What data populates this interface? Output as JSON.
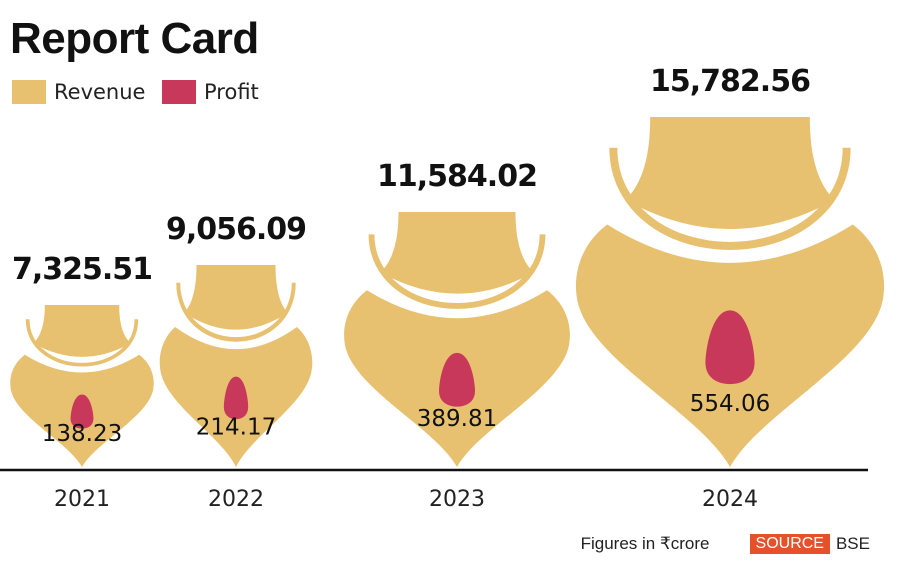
{
  "title": "Report Card",
  "legend": [
    {
      "label": "Revenue",
      "color": "#e8c170"
    },
    {
      "label": "Profit",
      "color": "#c8385a"
    }
  ],
  "chart_data": {
    "type": "bar",
    "title": "Report Card",
    "categories": [
      "2021",
      "2022",
      "2023",
      "2024"
    ],
    "series": [
      {
        "name": "Revenue",
        "values": [
          7325.51,
          9056.09,
          11584.02,
          15782.56
        ],
        "labels": [
          "7,325.51",
          "9,056.09",
          "11,584.02",
          "15,782.56"
        ]
      },
      {
        "name": "Profit",
        "values": [
          138.23,
          214.17,
          389.81,
          554.06
        ],
        "labels": [
          "138.23",
          "214.17",
          "389.81",
          "554.06"
        ]
      }
    ],
    "units": "₹ crore"
  },
  "footer": {
    "note": "Figures in ₹crore",
    "source_label": "SOURCE",
    "source": "BSE"
  }
}
